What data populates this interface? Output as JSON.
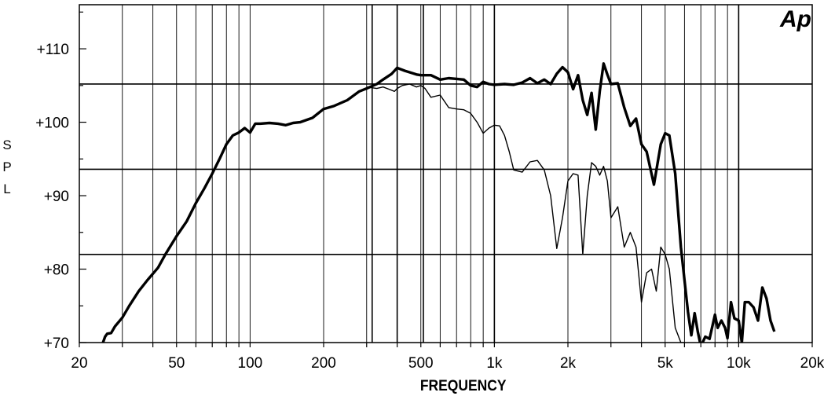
{
  "chart_data": {
    "type": "line",
    "title": "",
    "xlabel": "FREQUENCY",
    "ylabel": "S P L",
    "x_scale": "log",
    "xlim": [
      20,
      20000
    ],
    "ylim": [
      70,
      116
    ],
    "x_ticks": [
      {
        "value": 20,
        "label": "20"
      },
      {
        "value": 50,
        "label": "50"
      },
      {
        "value": 100,
        "label": "100"
      },
      {
        "value": 200,
        "label": "200"
      },
      {
        "value": 500,
        "label": "500"
      },
      {
        "value": 1000,
        "label": "1k"
      },
      {
        "value": 2000,
        "label": "2k"
      },
      {
        "value": 5000,
        "label": "5k"
      },
      {
        "value": 10000,
        "label": "10k"
      },
      {
        "value": 20000,
        "label": "20k"
      }
    ],
    "y_ticks": [
      {
        "value": 70,
        "label": "+70"
      },
      {
        "value": 80,
        "label": "+80"
      },
      {
        "value": 90,
        "label": "+90"
      },
      {
        "value": 100,
        "label": "+100"
      },
      {
        "value": 110,
        "label": "+110"
      }
    ],
    "h_reference_lines": [
      82,
      93.6,
      105.2
    ],
    "major_v_lines": [
      316,
      400,
      512,
      1000,
      10000
    ],
    "logo": "Ap",
    "grid": true,
    "series": [
      {
        "name": "",
        "color": "#000000",
        "stroke": "thick",
        "x": [
          25,
          25.5,
          26,
          27,
          28,
          30,
          32,
          35,
          38,
          42,
          45,
          50,
          55,
          60,
          65,
          70,
          75,
          80,
          85,
          90,
          95,
          100,
          105,
          110,
          120,
          130,
          140,
          150,
          160,
          180,
          200,
          220,
          250,
          280,
          300,
          330,
          350,
          380,
          400,
          430,
          450,
          480,
          500,
          550,
          600,
          650,
          700,
          750,
          800,
          850,
          900,
          950,
          1000,
          1100,
          1200,
          1300,
          1400,
          1500,
          1600,
          1700,
          1800,
          1900,
          2000,
          2100,
          2200,
          2300,
          2400,
          2500,
          2600,
          2700,
          2800,
          2900,
          3000,
          3200,
          3400,
          3600,
          3800,
          4000,
          4200,
          4500,
          4800,
          5000,
          5200,
          5500,
          5800,
          6000,
          6200,
          6400,
          6600,
          6800,
          7000,
          7300,
          7600,
          8000,
          8200,
          8500,
          8800,
          9000,
          9300,
          9600,
          10000,
          10300,
          10600,
          11000,
          11500,
          12000,
          12500,
          13000,
          13500,
          14000
        ],
        "y": [
          70,
          70.8,
          71.2,
          71.3,
          72.2,
          73.4,
          75,
          77,
          78.5,
          80.2,
          82,
          84.5,
          86.5,
          89,
          91,
          93,
          95,
          97,
          98.2,
          98.6,
          99.2,
          98.6,
          99.8,
          99.8,
          99.9,
          99.8,
          99.6,
          99.9,
          100,
          100.6,
          101.8,
          102.2,
          103,
          104.2,
          104.6,
          105.2,
          105.8,
          106.6,
          107.4,
          107,
          106.8,
          106.5,
          106.4,
          106.4,
          105.8,
          106,
          105.9,
          105.8,
          105,
          104.8,
          105.5,
          105.2,
          105.1,
          105.2,
          105.1,
          105.4,
          106,
          105.3,
          105.8,
          105.2,
          106.6,
          107.5,
          106.8,
          104.5,
          106.4,
          103,
          101,
          104,
          99,
          104.2,
          108,
          106.5,
          105.2,
          105.3,
          102,
          99.5,
          100.5,
          97,
          96,
          91.5,
          97,
          98.5,
          98.2,
          93,
          83,
          78.5,
          74.2,
          71,
          74,
          71.5,
          69.5,
          70.8,
          70.5,
          73.8,
          72,
          73,
          72,
          70.6,
          75.5,
          73.3,
          73,
          70,
          75.5,
          75.5,
          74.8,
          73,
          77.5,
          76,
          73,
          71.5
        ]
      },
      {
        "name": "",
        "color": "#000000",
        "stroke": "thin",
        "x": [
          300,
          330,
          350,
          370,
          390,
          400,
          420,
          450,
          480,
          500,
          520,
          550,
          600,
          650,
          700,
          750,
          800,
          850,
          900,
          950,
          1000,
          1050,
          1100,
          1150,
          1200,
          1300,
          1400,
          1500,
          1600,
          1700,
          1800,
          1900,
          2000,
          2100,
          2200,
          2300,
          2400,
          2500,
          2600,
          2700,
          2800,
          2900,
          3000,
          3200,
          3400,
          3600,
          3800,
          4000,
          4200,
          4400,
          4600,
          4800,
          5000,
          5200,
          5500,
          5800,
          6000
        ],
        "y": [
          104.8,
          104.6,
          104.8,
          104.5,
          104.2,
          104.6,
          105,
          105.2,
          104.8,
          105,
          104.6,
          103.4,
          103.7,
          102,
          101.8,
          101.7,
          101.2,
          100,
          98.5,
          99.2,
          99.6,
          99.5,
          98.2,
          96,
          93.5,
          93.2,
          94.6,
          94.8,
          93.5,
          90,
          82.8,
          87,
          92,
          93,
          92.8,
          82,
          90,
          94.5,
          94,
          92.8,
          94,
          92,
          87,
          88.5,
          83,
          85,
          83,
          75.5,
          79.5,
          80,
          77,
          83,
          82,
          80,
          72,
          70,
          70
        ]
      }
    ]
  }
}
